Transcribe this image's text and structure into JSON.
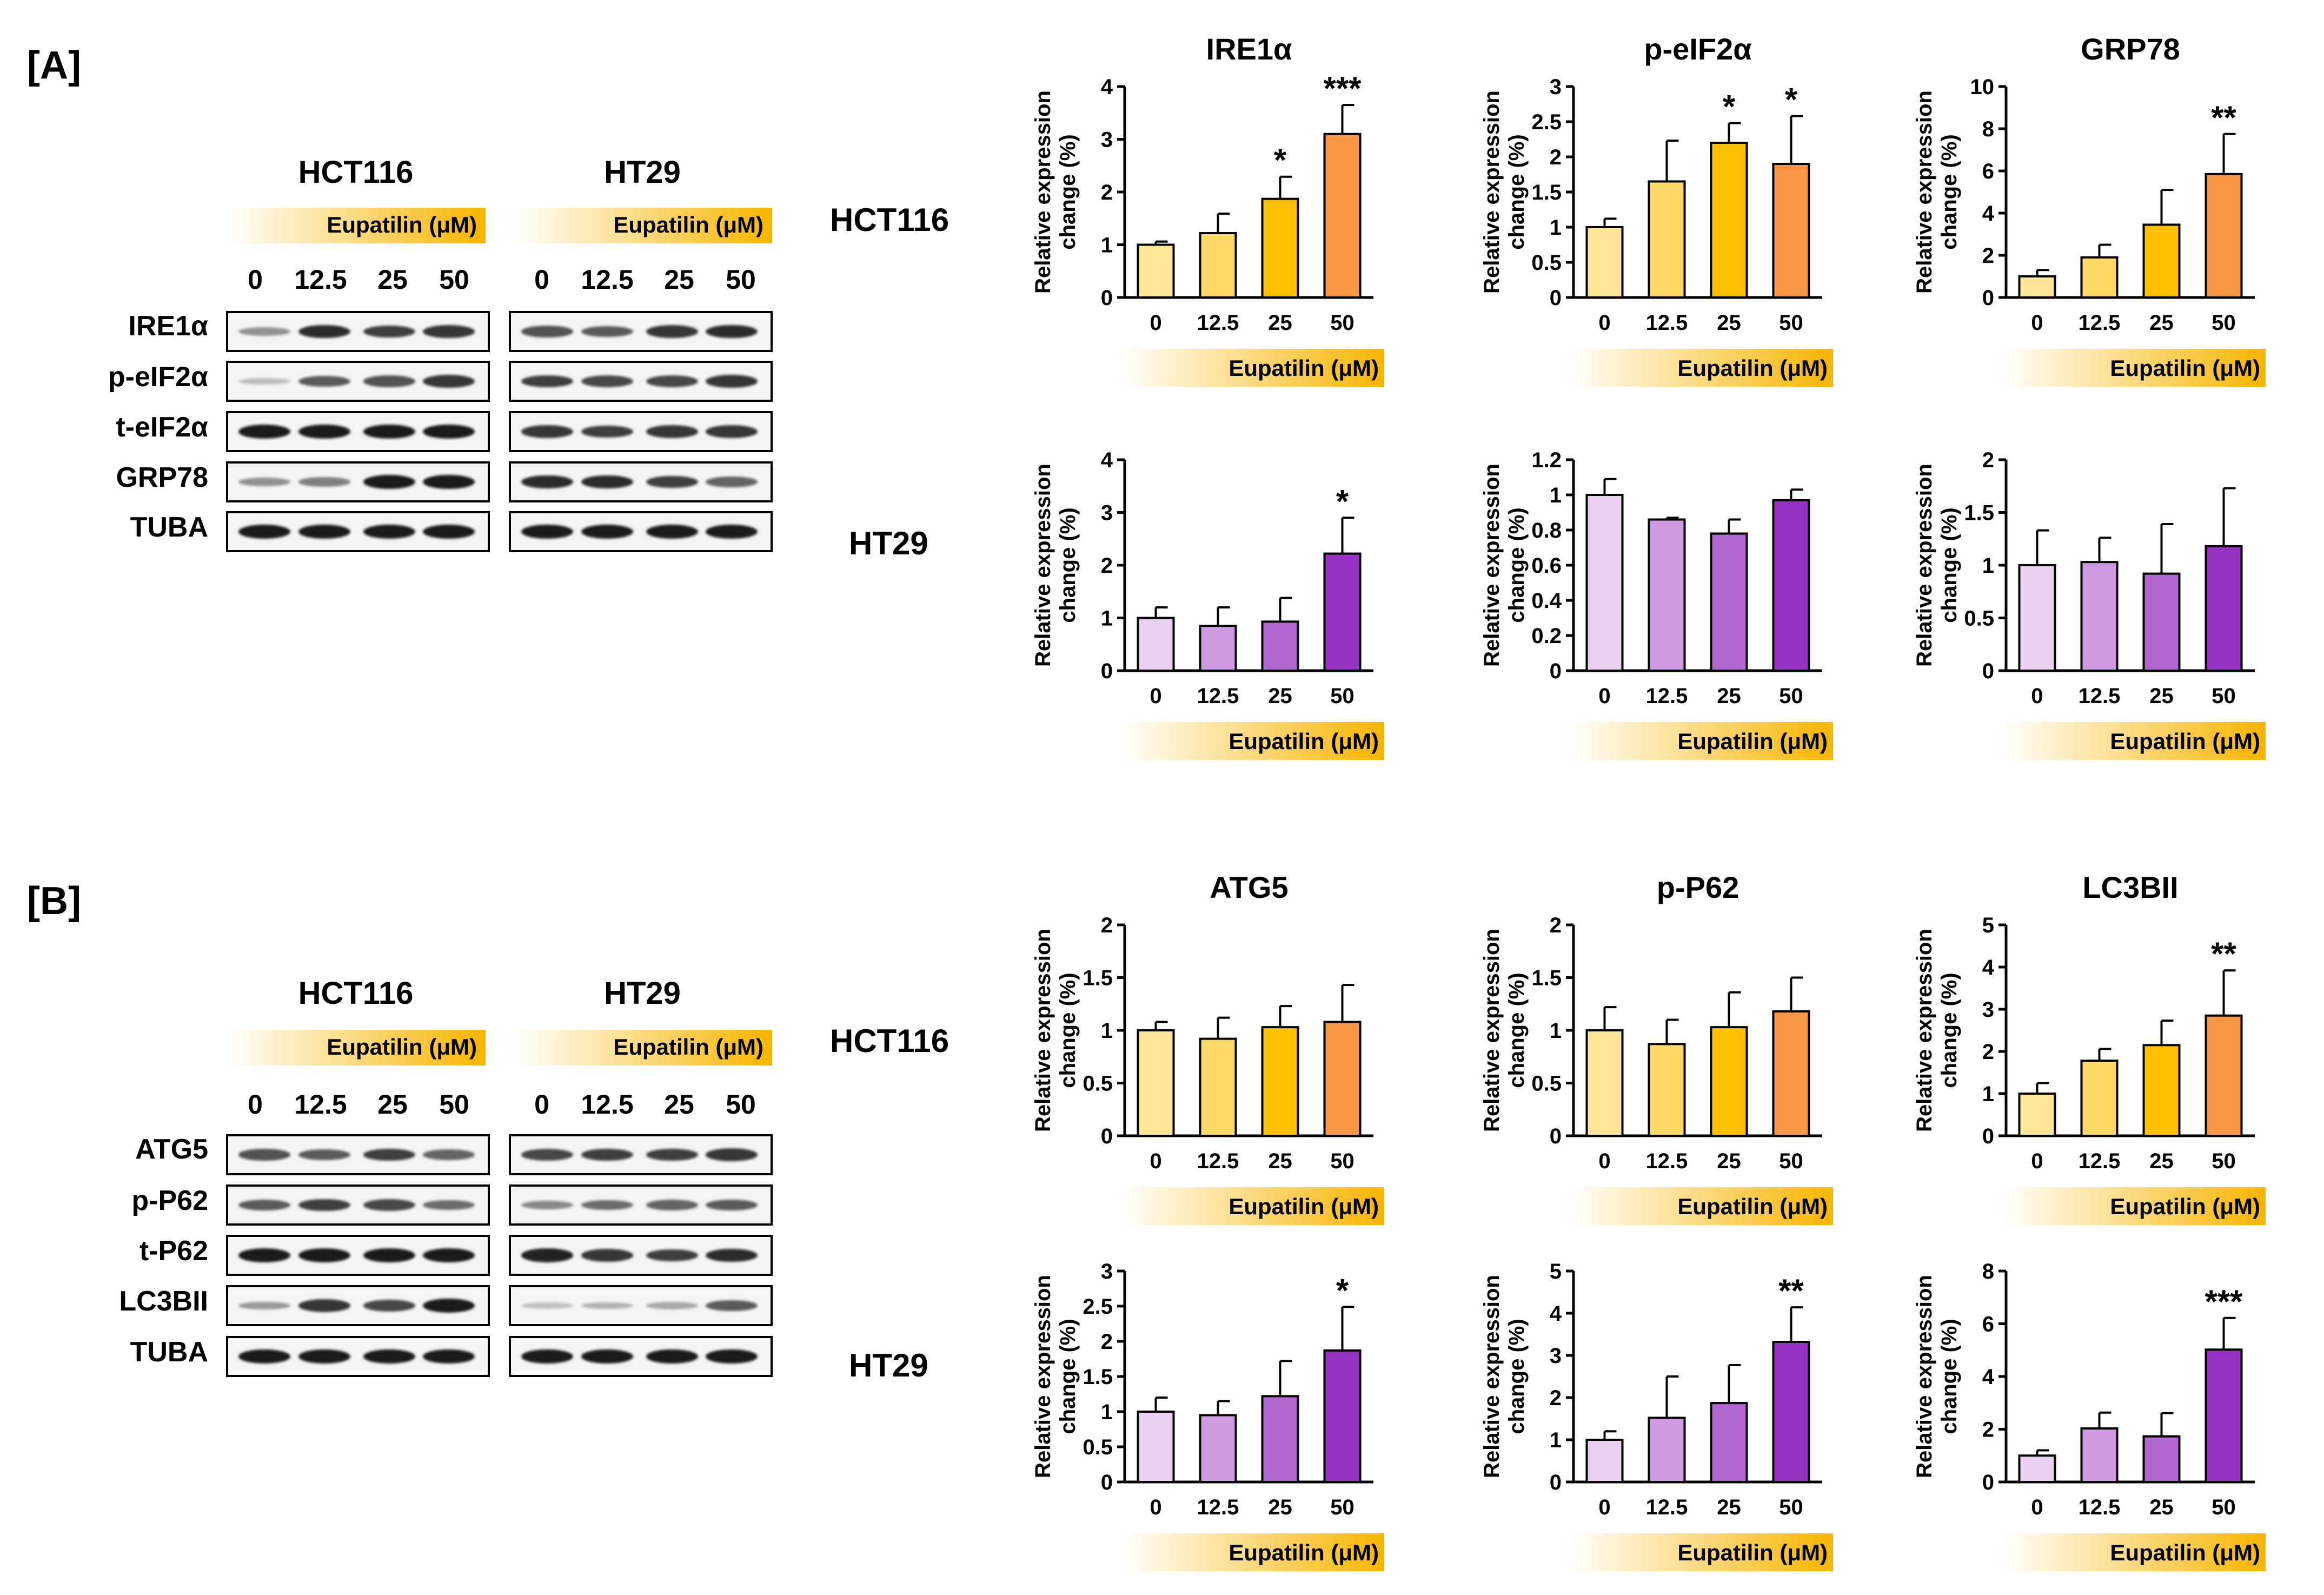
{
  "panels": [
    {
      "label": "[A]",
      "proteins": [
        "IRE1α",
        "p-eIF2α",
        "t-eIF2α",
        "GRP78",
        "TUBA"
      ],
      "band_intensity": {
        "HCT116": [
          [
            0.35,
            0.9,
            0.8,
            0.85
          ],
          [
            0.12,
            0.65,
            0.7,
            0.85
          ],
          [
            1,
            1,
            1,
            1
          ],
          [
            0.35,
            0.45,
            1,
            1
          ],
          [
            1,
            1,
            1,
            1
          ]
        ],
        "HT29": [
          [
            0.7,
            0.65,
            0.85,
            0.9
          ],
          [
            0.8,
            0.75,
            0.75,
            0.85
          ],
          [
            0.85,
            0.8,
            0.85,
            0.85
          ],
          [
            0.9,
            0.9,
            0.8,
            0.6
          ],
          [
            1,
            1,
            1,
            1
          ]
        ]
      }
    },
    {
      "label": "[B]",
      "proteins": [
        "ATG5",
        "p-P62",
        "t-P62",
        "LC3BII",
        "TUBA"
      ],
      "band_intensity": {
        "HCT116": [
          [
            0.7,
            0.65,
            0.8,
            0.6
          ],
          [
            0.65,
            0.8,
            0.75,
            0.55
          ],
          [
            1,
            1,
            1,
            1
          ],
          [
            0.3,
            0.85,
            0.75,
            1
          ],
          [
            1,
            1,
            1,
            1
          ]
        ],
        "HT29": [
          [
            0.75,
            0.8,
            0.8,
            0.85
          ],
          [
            0.4,
            0.55,
            0.6,
            0.65
          ],
          [
            0.95,
            0.85,
            0.8,
            0.9
          ],
          [
            0.1,
            0.18,
            0.22,
            0.65
          ],
          [
            1,
            1,
            1,
            1
          ]
        ]
      }
    }
  ],
  "cell_lines": [
    "HCT116",
    "HT29"
  ],
  "treatment_label": "Eupatilin (μM)",
  "concentrations": [
    "0",
    "12.5",
    "25",
    "50"
  ],
  "colors": {
    "HCT116": [
      "#ffe699",
      "#ffd966",
      "#ffc000",
      "#f79646"
    ],
    "HT29": [
      "#ead1f2",
      "#cf99e2",
      "#b266d1",
      "#9532c2"
    ],
    "gradient_end": "#f7b500"
  },
  "chart_data": [
    {
      "type": "bar",
      "panel": "A",
      "cell_line": "HCT116",
      "title": "IRE1α",
      "categories": [
        "0",
        "12.5",
        "25",
        "50"
      ],
      "values": [
        1.0,
        1.22,
        1.87,
        3.1
      ],
      "errors": [
        0.06,
        0.37,
        0.42,
        0.55
      ],
      "significance": [
        "",
        "",
        "*",
        "***"
      ],
      "ylim": [
        0,
        4
      ],
      "yticks": [
        "0",
        "1",
        "2",
        "3",
        "4"
      ],
      "ylabel": "Relative expression change (%)",
      "xlabel": "Eupatilin (μM)"
    },
    {
      "type": "bar",
      "panel": "A",
      "cell_line": "HCT116",
      "title": "p-eIF2α",
      "categories": [
        "0",
        "12.5",
        "25",
        "50"
      ],
      "values": [
        1.0,
        1.65,
        2.2,
        1.9
      ],
      "errors": [
        0.12,
        0.58,
        0.28,
        0.68
      ],
      "significance": [
        "",
        "",
        "*",
        "*"
      ],
      "ylim": [
        0,
        3
      ],
      "yticks": [
        "0",
        "0.5",
        "1",
        "1.5",
        "2",
        "2.5",
        "3"
      ],
      "ylabel": "Relative expression change (%)",
      "xlabel": "Eupatilin (μM)"
    },
    {
      "type": "bar",
      "panel": "A",
      "cell_line": "HCT116",
      "title": "GRP78",
      "categories": [
        "0",
        "12.5",
        "25",
        "50"
      ],
      "values": [
        1.0,
        1.9,
        3.45,
        5.85
      ],
      "errors": [
        0.3,
        0.6,
        1.65,
        1.9
      ],
      "significance": [
        "",
        "",
        "",
        "**"
      ],
      "ylim": [
        0,
        10
      ],
      "yticks": [
        "0",
        "2",
        "4",
        "6",
        "8",
        "10"
      ],
      "ylabel": "Relative expression change (%)",
      "xlabel": "Eupatilin (μM)"
    },
    {
      "type": "bar",
      "panel": "A",
      "cell_line": "HT29",
      "title": "",
      "categories": [
        "0",
        "12.5",
        "25",
        "50"
      ],
      "values": [
        1.0,
        0.85,
        0.93,
        2.22
      ],
      "errors": [
        0.2,
        0.35,
        0.45,
        0.68
      ],
      "significance": [
        "",
        "",
        "",
        "*"
      ],
      "ylim": [
        0,
        4
      ],
      "yticks": [
        "0",
        "1",
        "2",
        "3",
        "4"
      ],
      "ylabel": "Relative expression change (%)",
      "xlabel": "Eupatilin (μM)"
    },
    {
      "type": "bar",
      "panel": "A",
      "cell_line": "HT29",
      "title": "",
      "categories": [
        "0",
        "12.5",
        "25",
        "50"
      ],
      "values": [
        1.0,
        0.86,
        0.78,
        0.97
      ],
      "errors": [
        0.09,
        0.01,
        0.08,
        0.06
      ],
      "significance": [
        "",
        "",
        "",
        ""
      ],
      "ylim": [
        0,
        1.2
      ],
      "yticks": [
        "0",
        "0.2",
        "0.4",
        "0.6",
        "0.8",
        "1",
        "1.2"
      ],
      "ylabel": "Relative expression change (%)",
      "xlabel": "Eupatilin (μM)"
    },
    {
      "type": "bar",
      "panel": "A",
      "cell_line": "HT29",
      "title": "",
      "categories": [
        "0",
        "12.5",
        "25",
        "50"
      ],
      "values": [
        1.0,
        1.03,
        0.92,
        1.18
      ],
      "errors": [
        0.33,
        0.23,
        0.47,
        0.55
      ],
      "significance": [
        "",
        "",
        "",
        ""
      ],
      "ylim": [
        0,
        2
      ],
      "yticks": [
        "0",
        "0.5",
        "1",
        "1.5",
        "2"
      ],
      "ylabel": "Relative expression change (%)",
      "xlabel": "Eupatilin (μM)"
    },
    {
      "type": "bar",
      "panel": "B",
      "cell_line": "HCT116",
      "title": "ATG5",
      "categories": [
        "0",
        "12.5",
        "25",
        "50"
      ],
      "values": [
        1.0,
        0.92,
        1.03,
        1.08
      ],
      "errors": [
        0.08,
        0.2,
        0.2,
        0.35
      ],
      "significance": [
        "",
        "",
        "",
        ""
      ],
      "ylim": [
        0,
        2
      ],
      "yticks": [
        "0",
        "0.5",
        "1",
        "1.5",
        "2"
      ],
      "ylabel": "Relative expression change (%)",
      "xlabel": "Eupatilin (μM)"
    },
    {
      "type": "bar",
      "panel": "B",
      "cell_line": "HCT116",
      "title": "p-P62",
      "categories": [
        "0",
        "12.5",
        "25",
        "50"
      ],
      "values": [
        1.0,
        0.87,
        1.03,
        1.18
      ],
      "errors": [
        0.22,
        0.23,
        0.33,
        0.32
      ],
      "significance": [
        "",
        "",
        "",
        ""
      ],
      "ylim": [
        0,
        2
      ],
      "yticks": [
        "0",
        "0.5",
        "1",
        "1.5",
        "2"
      ],
      "ylabel": "Relative expression change (%)",
      "xlabel": "Eupatilin (μM)"
    },
    {
      "type": "bar",
      "panel": "B",
      "cell_line": "HCT116",
      "title": "LC3BII",
      "categories": [
        "0",
        "12.5",
        "25",
        "50"
      ],
      "values": [
        1.0,
        1.78,
        2.15,
        2.85
      ],
      "errors": [
        0.25,
        0.28,
        0.58,
        1.07
      ],
      "significance": [
        "",
        "",
        "",
        "**"
      ],
      "ylim": [
        0,
        5
      ],
      "yticks": [
        "0",
        "1",
        "2",
        "3",
        "4",
        "5"
      ],
      "ylabel": "Relative expression change (%)",
      "xlabel": "Eupatilin (μM)"
    },
    {
      "type": "bar",
      "panel": "B",
      "cell_line": "HT29",
      "title": "",
      "categories": [
        "0",
        "12.5",
        "25",
        "50"
      ],
      "values": [
        1.0,
        0.95,
        1.22,
        1.87
      ],
      "errors": [
        0.2,
        0.2,
        0.5,
        0.62
      ],
      "significance": [
        "",
        "",
        "",
        "*"
      ],
      "ylim": [
        0,
        3
      ],
      "yticks": [
        "0",
        "0.5",
        "1",
        "1.5",
        "2",
        "2.5",
        "3"
      ],
      "ylabel": "Relative expression change (%)",
      "xlabel": "Eupatilin (μM)"
    },
    {
      "type": "bar",
      "panel": "B",
      "cell_line": "HT29",
      "title": "",
      "categories": [
        "0",
        "12.5",
        "25",
        "50"
      ],
      "values": [
        1.0,
        1.52,
        1.87,
        3.32
      ],
      "errors": [
        0.2,
        0.98,
        0.9,
        0.82
      ],
      "significance": [
        "",
        "",
        "",
        "**"
      ],
      "ylim": [
        0,
        5
      ],
      "yticks": [
        "0",
        "1",
        "2",
        "3",
        "4",
        "5"
      ],
      "ylabel": "Relative expression change (%)",
      "xlabel": "Eupatilin (μM)"
    },
    {
      "type": "bar",
      "panel": "B",
      "cell_line": "HT29",
      "title": "",
      "categories": [
        "0",
        "12.5",
        "25",
        "50"
      ],
      "values": [
        1.0,
        2.03,
        1.73,
        5.02
      ],
      "errors": [
        0.2,
        0.6,
        0.88,
        1.2
      ],
      "significance": [
        "",
        "",
        "",
        "***"
      ],
      "ylim": [
        0,
        8
      ],
      "yticks": [
        "0",
        "2",
        "4",
        "6",
        "8"
      ],
      "ylabel": "Relative expression change (%)",
      "xlabel": "Eupatilin (μM)"
    }
  ]
}
